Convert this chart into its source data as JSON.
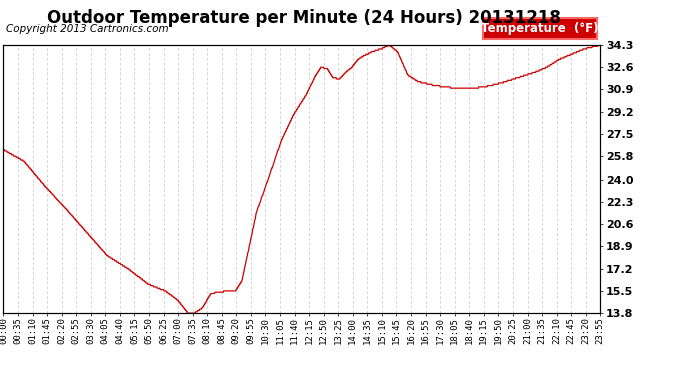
{
  "title": "Outdoor Temperature per Minute (24 Hours) 20131218",
  "copyright_text": "Copyright 2013 Cartronics.com",
  "legend_label": "Temperature  (°F)",
  "line_color": "#cc0000",
  "background_color": "#ffffff",
  "grid_color": "#aaaaaa",
  "legend_bg": "#cc0000",
  "legend_text_color": "#ffffff",
  "yticks": [
    13.8,
    15.5,
    17.2,
    18.9,
    20.6,
    22.3,
    24.0,
    25.8,
    27.5,
    29.2,
    30.9,
    32.6,
    34.3
  ],
  "ylim": [
    13.8,
    34.3
  ],
  "xtick_labels": [
    "00:00",
    "00:35",
    "01:10",
    "01:45",
    "02:20",
    "02:55",
    "03:30",
    "04:05",
    "04:40",
    "05:15",
    "05:50",
    "06:25",
    "07:00",
    "07:35",
    "08:10",
    "08:45",
    "09:20",
    "09:55",
    "10:30",
    "11:05",
    "11:40",
    "12:15",
    "12:50",
    "13:25",
    "14:00",
    "14:35",
    "15:10",
    "15:45",
    "16:20",
    "16:55",
    "17:30",
    "18:05",
    "18:40",
    "19:15",
    "19:50",
    "20:25",
    "21:00",
    "21:35",
    "22:10",
    "22:45",
    "23:20",
    "23:55"
  ],
  "title_fontsize": 12,
  "copyright_fontsize": 7.5,
  "tick_fontsize": 6.5,
  "ytick_fontsize": 8,
  "legend_fontsize": 8.5,
  "control_points": [
    [
      0,
      26.3
    ],
    [
      50,
      25.4
    ],
    [
      100,
      23.5
    ],
    [
      150,
      21.8
    ],
    [
      200,
      20.0
    ],
    [
      250,
      18.2
    ],
    [
      300,
      17.2
    ],
    [
      350,
      16.0
    ],
    [
      390,
      15.5
    ],
    [
      420,
      14.8
    ],
    [
      445,
      13.8
    ],
    [
      460,
      13.8
    ],
    [
      480,
      14.2
    ],
    [
      500,
      15.3
    ],
    [
      540,
      15.5
    ],
    [
      560,
      15.5
    ],
    [
      575,
      16.3
    ],
    [
      590,
      18.5
    ],
    [
      610,
      21.5
    ],
    [
      640,
      24.2
    ],
    [
      670,
      27.0
    ],
    [
      700,
      29.0
    ],
    [
      730,
      30.5
    ],
    [
      750,
      31.8
    ],
    [
      765,
      32.6
    ],
    [
      780,
      32.5
    ],
    [
      795,
      31.8
    ],
    [
      810,
      31.7
    ],
    [
      825,
      32.2
    ],
    [
      840,
      32.6
    ],
    [
      855,
      33.2
    ],
    [
      870,
      33.5
    ],
    [
      890,
      33.8
    ],
    [
      910,
      34.0
    ],
    [
      930,
      34.3
    ],
    [
      950,
      33.8
    ],
    [
      975,
      32.0
    ],
    [
      1000,
      31.5
    ],
    [
      1040,
      31.2
    ],
    [
      1090,
      31.0
    ],
    [
      1130,
      31.0
    ],
    [
      1160,
      31.1
    ],
    [
      1200,
      31.4
    ],
    [
      1240,
      31.8
    ],
    [
      1280,
      32.2
    ],
    [
      1310,
      32.6
    ],
    [
      1340,
      33.2
    ],
    [
      1370,
      33.6
    ],
    [
      1400,
      34.0
    ],
    [
      1440,
      34.3
    ]
  ]
}
